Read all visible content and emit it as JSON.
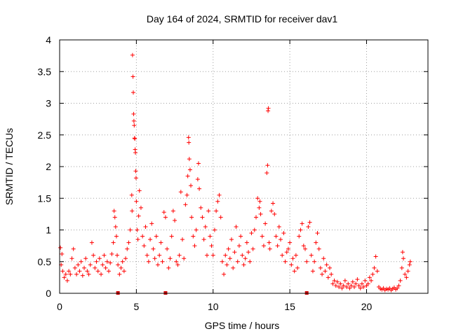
{
  "chart_data": {
    "type": "scatter",
    "title": "Day 164 of 2024, SRMTID for receiver dav1",
    "xlabel": "GPS time / hours",
    "ylabel": "SRMTID / TECUs",
    "xlim": [
      0,
      24
    ],
    "ylim": [
      0,
      4
    ],
    "xticks": [
      0,
      5,
      10,
      15,
      20
    ],
    "xtick_labels": [
      "0",
      "5",
      "10",
      "15",
      "20"
    ],
    "yticks": [
      0,
      0.5,
      1,
      1.5,
      2,
      2.5,
      3,
      3.5,
      4
    ],
    "ytick_labels": [
      "0",
      "0.5",
      "1",
      "1.5",
      "2",
      "2.5",
      "3",
      "3.5",
      "4"
    ],
    "grid": true,
    "marker": "+",
    "color": "#ff0000",
    "gap_marker_color": "#cc0000",
    "gap_markers_x": [
      3.8,
      6.9,
      16.1
    ],
    "series": [
      {
        "name": "SRMTID",
        "points": [
          [
            0.05,
            0.72
          ],
          [
            0.1,
            0.45
          ],
          [
            0.15,
            0.62
          ],
          [
            0.2,
            0.35
          ],
          [
            0.3,
            0.25
          ],
          [
            0.4,
            0.3
          ],
          [
            0.5,
            0.2
          ],
          [
            0.6,
            0.35
          ],
          [
            0.7,
            0.3
          ],
          [
            0.8,
            0.55
          ],
          [
            0.9,
            0.7
          ],
          [
            1.0,
            0.4
          ],
          [
            1.1,
            0.3
          ],
          [
            1.2,
            0.45
          ],
          [
            1.3,
            0.35
          ],
          [
            1.4,
            0.5
          ],
          [
            1.5,
            0.28
          ],
          [
            1.6,
            0.4
          ],
          [
            1.7,
            0.55
          ],
          [
            1.8,
            0.35
          ],
          [
            1.9,
            0.3
          ],
          [
            2.0,
            0.45
          ],
          [
            2.1,
            0.8
          ],
          [
            2.2,
            0.6
          ],
          [
            2.3,
            0.4
          ],
          [
            2.4,
            0.5
          ],
          [
            2.5,
            0.35
          ],
          [
            2.6,
            0.55
          ],
          [
            2.7,
            0.3
          ],
          [
            2.8,
            0.45
          ],
          [
            2.9,
            0.6
          ],
          [
            3.0,
            0.4
          ],
          [
            3.1,
            0.5
          ],
          [
            3.2,
            0.35
          ],
          [
            3.3,
            0.48
          ],
          [
            3.4,
            0.62
          ],
          [
            3.5,
            0.8
          ],
          [
            3.55,
            1.3
          ],
          [
            3.6,
            1.2
          ],
          [
            3.65,
            1.05
          ],
          [
            3.7,
            0.9
          ],
          [
            3.75,
            0.6
          ],
          [
            3.8,
            0.45
          ],
          [
            3.9,
            0.3
          ],
          [
            4.0,
            0.4
          ],
          [
            4.1,
            0.5
          ],
          [
            4.2,
            0.35
          ],
          [
            4.3,
            0.55
          ],
          [
            4.4,
            0.7
          ],
          [
            4.5,
            0.8
          ],
          [
            4.6,
            1.0
          ],
          [
            4.7,
            1.55
          ],
          [
            4.72,
            1.3
          ],
          [
            4.75,
            3.76
          ],
          [
            4.78,
            3.42
          ],
          [
            4.8,
            3.17
          ],
          [
            4.82,
            2.83
          ],
          [
            4.84,
            2.72
          ],
          [
            4.86,
            2.65
          ],
          [
            4.88,
            2.45
          ],
          [
            4.9,
            2.44
          ],
          [
            4.92,
            2.27
          ],
          [
            4.94,
            2.22
          ],
          [
            4.96,
            1.93
          ],
          [
            4.98,
            1.82
          ],
          [
            5.0,
            1.45
          ],
          [
            5.05,
            1.0
          ],
          [
            5.1,
            0.85
          ],
          [
            5.15,
            1.22
          ],
          [
            5.2,
            1.62
          ],
          [
            5.3,
            1.35
          ],
          [
            5.4,
            0.9
          ],
          [
            5.5,
            0.75
          ],
          [
            5.6,
            1.05
          ],
          [
            5.7,
            0.6
          ],
          [
            5.8,
            0.5
          ],
          [
            5.9,
            0.85
          ],
          [
            6.0,
            1.1
          ],
          [
            6.1,
            0.7
          ],
          [
            6.2,
            0.55
          ],
          [
            6.3,
            0.9
          ],
          [
            6.4,
            0.45
          ],
          [
            6.5,
            0.6
          ],
          [
            6.6,
            0.8
          ],
          [
            6.7,
            0.5
          ],
          [
            6.8,
            1.28
          ],
          [
            6.9,
            1.2
          ],
          [
            7.0,
            0.7
          ],
          [
            7.1,
            0.4
          ],
          [
            7.2,
            0.55
          ],
          [
            7.3,
            0.9
          ],
          [
            7.4,
            1.3
          ],
          [
            7.5,
            1.15
          ],
          [
            7.6,
            0.5
          ],
          [
            7.7,
            0.45
          ],
          [
            7.8,
            0.6
          ],
          [
            7.9,
            1.6
          ],
          [
            8.0,
            0.85
          ],
          [
            8.1,
            0.55
          ],
          [
            8.2,
            1.4
          ],
          [
            8.3,
            1.55
          ],
          [
            8.35,
            1.85
          ],
          [
            8.4,
            2.46
          ],
          [
            8.42,
            2.38
          ],
          [
            8.45,
            2.12
          ],
          [
            8.5,
            1.95
          ],
          [
            8.55,
            1.7
          ],
          [
            8.6,
            1.2
          ],
          [
            8.7,
            0.9
          ],
          [
            8.8,
            0.75
          ],
          [
            8.9,
            1.0
          ],
          [
            9.0,
            1.8
          ],
          [
            9.05,
            2.05
          ],
          [
            9.1,
            1.65
          ],
          [
            9.2,
            1.35
          ],
          [
            9.3,
            1.2
          ],
          [
            9.4,
            0.85
          ],
          [
            9.5,
            1.05
          ],
          [
            9.6,
            0.6
          ],
          [
            9.7,
            1.3
          ],
          [
            9.8,
            0.9
          ],
          [
            9.9,
            0.75
          ],
          [
            10.0,
            0.6
          ],
          [
            10.1,
            1.0
          ],
          [
            10.2,
            1.3
          ],
          [
            10.3,
            1.45
          ],
          [
            10.4,
            1.55
          ],
          [
            10.5,
            1.2
          ],
          [
            10.6,
            0.5
          ],
          [
            10.7,
            0.3
          ],
          [
            10.8,
            0.6
          ],
          [
            10.9,
            0.45
          ],
          [
            11.0,
            0.7
          ],
          [
            11.1,
            0.55
          ],
          [
            11.2,
            0.85
          ],
          [
            11.3,
            0.4
          ],
          [
            11.4,
            0.65
          ],
          [
            11.5,
            1.05
          ],
          [
            11.6,
            0.5
          ],
          [
            11.7,
            0.75
          ],
          [
            11.8,
            0.9
          ],
          [
            11.9,
            0.6
          ],
          [
            12.0,
            0.45
          ],
          [
            12.1,
            0.55
          ],
          [
            12.2,
            0.8
          ],
          [
            12.3,
            0.65
          ],
          [
            12.4,
            0.5
          ],
          [
            12.5,
            0.95
          ],
          [
            12.6,
            0.7
          ],
          [
            12.7,
            1.0
          ],
          [
            12.8,
            1.2
          ],
          [
            12.9,
            1.5
          ],
          [
            13.0,
            1.35
          ],
          [
            13.05,
            1.45
          ],
          [
            13.1,
            1.25
          ],
          [
            13.2,
            0.9
          ],
          [
            13.3,
            0.75
          ],
          [
            13.4,
            1.1
          ],
          [
            13.5,
            1.9
          ],
          [
            13.55,
            2.02
          ],
          [
            13.58,
            2.88
          ],
          [
            13.6,
            2.92
          ],
          [
            13.65,
            0.8
          ],
          [
            13.7,
            0.7
          ],
          [
            13.8,
            1.3
          ],
          [
            13.9,
            1.42
          ],
          [
            14.0,
            1.25
          ],
          [
            14.1,
            0.9
          ],
          [
            14.2,
            0.75
          ],
          [
            14.3,
            1.05
          ],
          [
            14.4,
            0.85
          ],
          [
            14.5,
            0.6
          ],
          [
            14.6,
            0.95
          ],
          [
            14.7,
            0.5
          ],
          [
            14.8,
            0.65
          ],
          [
            14.9,
            0.7
          ],
          [
            15.0,
            0.8
          ],
          [
            15.1,
            0.45
          ],
          [
            15.2,
            0.55
          ],
          [
            15.3,
            0.35
          ],
          [
            15.4,
            0.6
          ],
          [
            15.5,
            0.4
          ],
          [
            15.6,
            0.9
          ],
          [
            15.7,
            1.0
          ],
          [
            15.8,
            1.1
          ],
          [
            15.9,
            0.75
          ],
          [
            16.0,
            0.7
          ],
          [
            16.1,
            0.5
          ],
          [
            16.2,
            1.05
          ],
          [
            16.3,
            1.12
          ],
          [
            16.4,
            0.6
          ],
          [
            16.5,
            0.35
          ],
          [
            16.6,
            0.5
          ],
          [
            16.7,
            0.8
          ],
          [
            16.8,
            0.95
          ],
          [
            16.9,
            0.7
          ],
          [
            17.0,
            0.4
          ],
          [
            17.1,
            0.3
          ],
          [
            17.2,
            0.55
          ],
          [
            17.3,
            0.35
          ],
          [
            17.4,
            0.45
          ],
          [
            17.5,
            0.25
          ],
          [
            17.6,
            0.4
          ],
          [
            17.7,
            0.3
          ],
          [
            17.8,
            0.15
          ],
          [
            17.9,
            0.2
          ],
          [
            18.0,
            0.12
          ],
          [
            18.1,
            0.18
          ],
          [
            18.2,
            0.1
          ],
          [
            18.3,
            0.15
          ],
          [
            18.4,
            0.08
          ],
          [
            18.5,
            0.12
          ],
          [
            18.6,
            0.2
          ],
          [
            18.7,
            0.1
          ],
          [
            18.8,
            0.15
          ],
          [
            18.9,
            0.08
          ],
          [
            19.0,
            0.12
          ],
          [
            19.1,
            0.18
          ],
          [
            19.2,
            0.1
          ],
          [
            19.3,
            0.15
          ],
          [
            19.4,
            0.22
          ],
          [
            19.5,
            0.12
          ],
          [
            19.6,
            0.08
          ],
          [
            19.7,
            0.15
          ],
          [
            19.8,
            0.1
          ],
          [
            19.9,
            0.2
          ],
          [
            20.0,
            0.12
          ],
          [
            20.1,
            0.15
          ],
          [
            20.2,
            0.25
          ],
          [
            20.3,
            0.2
          ],
          [
            20.4,
            0.3
          ],
          [
            20.5,
            0.4
          ],
          [
            20.6,
            0.58
          ],
          [
            20.7,
            0.35
          ],
          [
            20.8,
            0.1
          ],
          [
            20.9,
            0.07
          ],
          [
            21.0,
            0.06
          ],
          [
            21.1,
            0.08
          ],
          [
            21.2,
            0.05
          ],
          [
            21.3,
            0.07
          ],
          [
            21.4,
            0.06
          ],
          [
            21.5,
            0.08
          ],
          [
            21.6,
            0.05
          ],
          [
            21.7,
            0.07
          ],
          [
            21.8,
            0.09
          ],
          [
            21.9,
            0.06
          ],
          [
            22.0,
            0.08
          ],
          [
            22.1,
            0.12
          ],
          [
            22.2,
            0.2
          ],
          [
            22.3,
            0.4
          ],
          [
            22.35,
            0.65
          ],
          [
            22.4,
            0.55
          ],
          [
            22.5,
            0.3
          ],
          [
            22.6,
            0.25
          ],
          [
            22.7,
            0.35
          ],
          [
            22.8,
            0.45
          ],
          [
            22.85,
            0.5
          ]
        ]
      }
    ]
  }
}
